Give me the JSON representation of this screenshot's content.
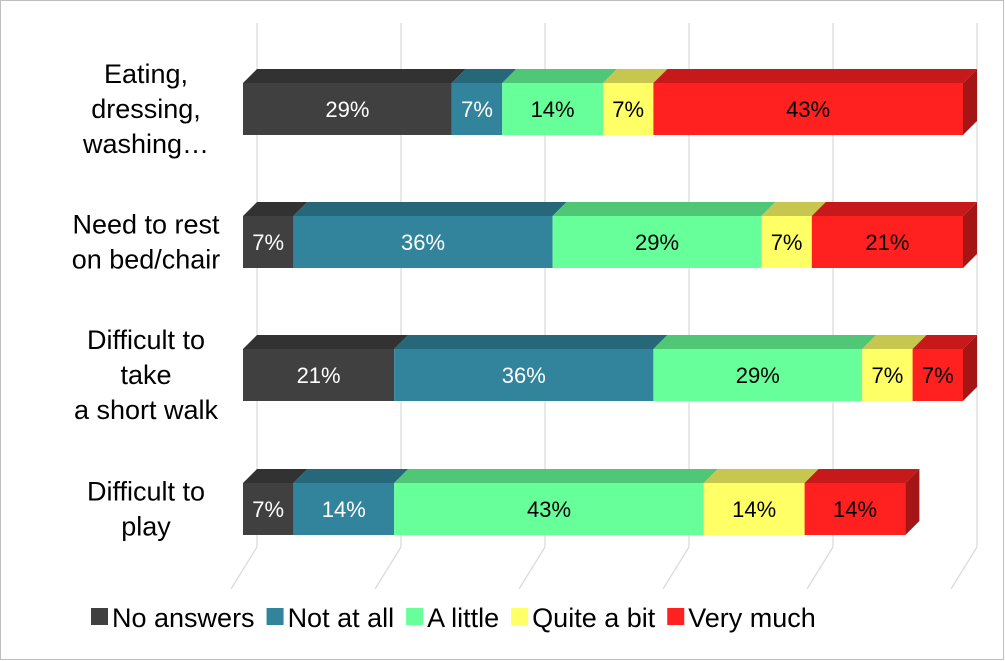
{
  "chart_data": {
    "type": "bar",
    "orientation": "horizontal",
    "stacked": "100%",
    "three_d": true,
    "categories": [
      [
        "Eating,",
        "dressing,",
        "washing…"
      ],
      [
        "Need to rest",
        "on bed/chair"
      ],
      [
        "Difficult to",
        "take",
        "a short walk"
      ],
      [
        "Difficult to",
        "play"
      ]
    ],
    "series": [
      {
        "name": "No answers",
        "color": "#404040",
        "label_color": "#ffffff",
        "values": [
          29,
          7,
          21,
          7
        ]
      },
      {
        "name": "Not at all",
        "color": "#31849b",
        "label_color": "#ffffff",
        "values": [
          7,
          36,
          36,
          14
        ]
      },
      {
        "name": "A little",
        "color": "#66ff99",
        "label_color": "#000000",
        "values": [
          14,
          29,
          29,
          43
        ]
      },
      {
        "name": "Quite a bit",
        "color": "#ffff66",
        "label_color": "#000000",
        "values": [
          7,
          7,
          7,
          14
        ]
      },
      {
        "name": "Very much",
        "color": "#ff2020",
        "label_color": "#000000",
        "values": [
          43,
          21,
          7,
          14
        ]
      }
    ],
    "data_labels": [
      [
        "29%",
        "7%",
        "14%",
        "7%",
        "43%"
      ],
      [
        "7%",
        "36%",
        "29%",
        "7%",
        "21%"
      ],
      [
        "21%",
        "36%",
        "29%",
        "7%",
        "7%"
      ],
      [
        "7%",
        "14%",
        "43%",
        "14%",
        "14%"
      ]
    ],
    "xlim": [
      0,
      100
    ],
    "grid": true,
    "legend_position": "bottom"
  }
}
